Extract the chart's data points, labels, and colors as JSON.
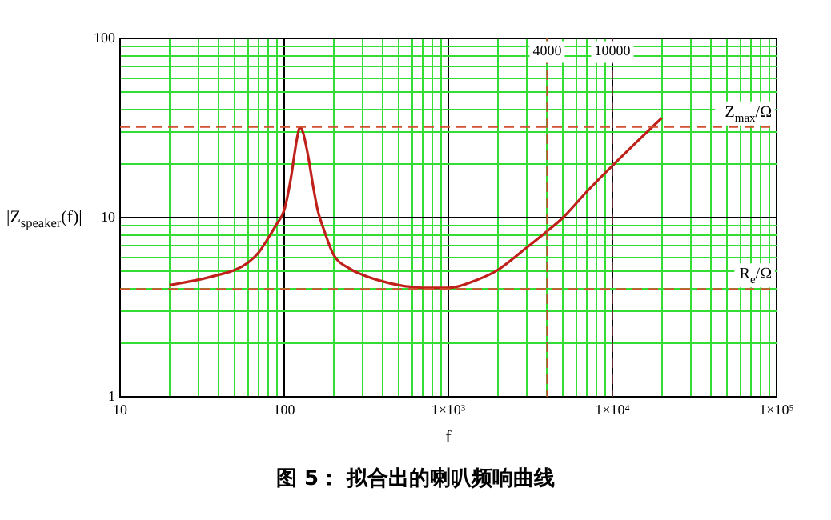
{
  "chart_data": {
    "type": "line",
    "xlabel": "f",
    "ylabel": "|Z$_{speaker}$(f)|",
    "annotations": [
      "图 5： 拟合出的喇叭频响曲线"
    ],
    "log": "xy",
    "grid": true,
    "legend": false,
    "marker": "none",
    "line_style": "solid",
    "xlim": [
      10,
      100000
    ],
    "ylim": [
      1,
      100
    ],
    "xticks": [
      10,
      {
        "value": 20,
        "label": null
      },
      {
        "value": 30,
        "label": null
      },
      {
        "value": 40,
        "label": null
      },
      {
        "value": 50,
        "label": null
      },
      {
        "value": 60,
        "label": null
      },
      {
        "value": 70,
        "label": null
      },
      {
        "value": 80,
        "label": null
      },
      {
        "value": 90,
        "label": null
      },
      100,
      {
        "value": 200,
        "label": null
      },
      {
        "value": 300,
        "label": null
      },
      {
        "value": 400,
        "label": null
      },
      {
        "value": 500,
        "label": null
      },
      {
        "value": 600,
        "label": null
      },
      {
        "value": 700,
        "label": null
      },
      {
        "value": 800,
        "label": null
      },
      {
        "value": 900,
        "label": null
      },
      {
        "value": 1000,
        "label": "1×10³"
      },
      {
        "value": 2000,
        "label": null
      },
      {
        "value": 3000,
        "label": null
      },
      {
        "value": 4000,
        "label": null
      },
      {
        "value": 5000,
        "label": null
      },
      {
        "value": 6000,
        "label": null
      },
      {
        "value": 7000,
        "label": null
      },
      {
        "value": 8000,
        "label": null
      },
      {
        "value": 9000,
        "label": null
      },
      {
        "value": 10000,
        "label": "1×10⁴"
      },
      {
        "value": 20000,
        "label": null
      },
      {
        "value": 30000,
        "label": null
      },
      {
        "value": 40000,
        "label": null
      },
      {
        "value": 50000,
        "label": null
      },
      {
        "value": 60000,
        "label": null
      },
      {
        "value": 70000,
        "label": null
      },
      {
        "value": 80000,
        "label": null
      },
      {
        "value": 90000,
        "label": null
      },
      {
        "value": 100000,
        "label": "1×10⁵"
      }
    ],
    "yticks": [
      1,
      {
        "value": 2,
        "label": null
      },
      {
        "value": 3,
        "label": null
      },
      {
        "value": 4,
        "label": null
      },
      {
        "value": 5,
        "label": null
      },
      {
        "value": 6,
        "label": null
      },
      {
        "value": 7,
        "label": null
      },
      {
        "value": 8,
        "label": null
      },
      {
        "value": 9,
        "label": null
      },
      10,
      {
        "value": 20,
        "label": null
      },
      {
        "value": 30,
        "label": null
      },
      {
        "value": 40,
        "label": null
      },
      {
        "value": 50,
        "label": null
      },
      {
        "value": 60,
        "label": null
      },
      {
        "value": 70,
        "label": null
      },
      {
        "value": 80,
        "label": null
      },
      {
        "value": 90,
        "label": null
      },
      100
    ],
    "x": [
      20,
      30,
      40,
      50,
      60,
      70,
      80,
      90,
      100,
      110,
      115,
      120,
      125,
      130,
      140,
      150,
      160,
      175,
      200,
      250,
      300,
      400,
      500,
      700,
      1000,
      1500,
      2000,
      3000,
      4000,
      5000,
      7000,
      10000,
      15000,
      20000
    ],
    "series": [
      {
        "color": "#c0201a",
        "values": [
          4.2,
          4.5,
          4.8,
          5.1,
          5.6,
          6.4,
          7.7,
          9.2,
          11,
          16.7,
          22,
          28,
          32,
          30,
          22,
          15,
          11,
          8.5,
          6.2,
          5.2,
          4.8,
          4.4,
          4.2,
          4.05,
          4.05,
          4.5,
          5.1,
          6.8,
          8.4,
          10,
          14,
          19.5,
          28,
          36
        ]
      }
    ],
    "ref_lines": [
      {
        "axis": "y",
        "value": 32,
        "label": "Z$_{max}$/Ω",
        "color": "#d05030",
        "line_style": "dashed"
      },
      {
        "axis": "y",
        "value": 4,
        "label": "R$_{e}$/Ω",
        "color": "#d05030",
        "line_style": "dashed"
      },
      {
        "axis": "x",
        "value": 4000,
        "label": "4000",
        "color": "#c05030",
        "line_style": "dashed"
      },
      {
        "axis": "x",
        "value": 10000,
        "label": "10000",
        "color": "#603030",
        "line_style": "dashed"
      }
    ]
  }
}
